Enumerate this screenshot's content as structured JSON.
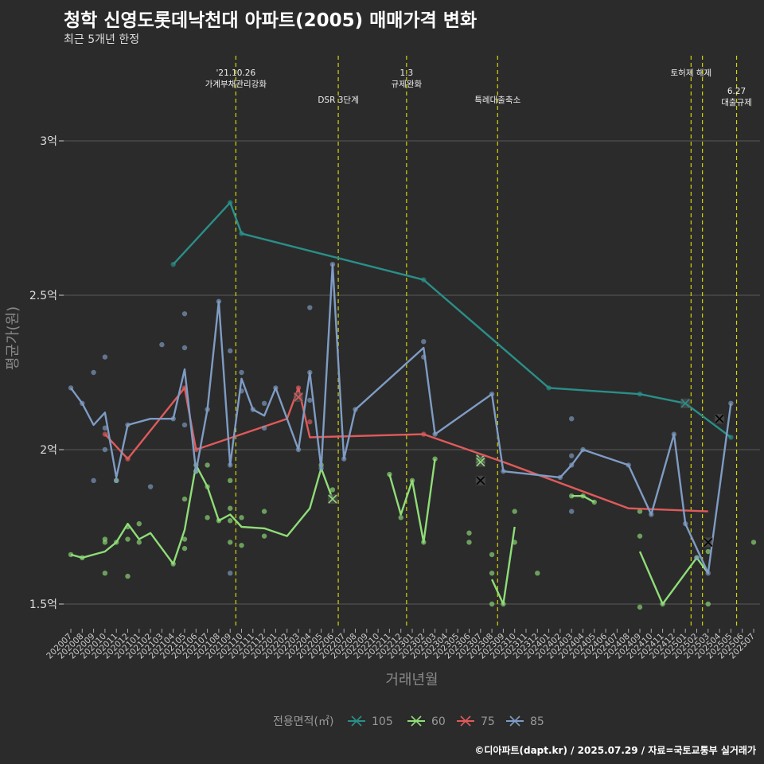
{
  "header": {
    "title": "청학 신영도롯데낙천대 아파트(2005) 매매가격 변화",
    "subtitle": "최근 5개년 한정"
  },
  "caption": "©디아파트(dapt.kr) / 2025.07.29 / 자료=국토교통부 실거래가",
  "colors": {
    "background": "#2b2b2b",
    "grid": "#5a5a5a",
    "vline": "#d4d40a"
  },
  "chart_data": {
    "type": "line",
    "xlabel": "거래년월",
    "ylabel": "평균가(원)",
    "yticks": [
      {
        "v": 1.5,
        "label": "1.5억"
      },
      {
        "v": 2.0,
        "label": "2억"
      },
      {
        "v": 2.5,
        "label": "2.5억"
      },
      {
        "v": 3.0,
        "label": "3억"
      }
    ],
    "ylim": [
      1.42,
      3.25
    ],
    "categories": [
      "202007",
      "202008",
      "202009",
      "202010",
      "202011",
      "202012",
      "202101",
      "202102",
      "202103",
      "202104",
      "202105",
      "202106",
      "202107",
      "202108",
      "202109",
      "202110",
      "202111",
      "202112",
      "202201",
      "202202",
      "202203",
      "202204",
      "202205",
      "202206",
      "202207",
      "202208",
      "202209",
      "202210",
      "202211",
      "202212",
      "202301",
      "202302",
      "202303",
      "202304",
      "202305",
      "202306",
      "202307",
      "202308",
      "202309",
      "202310",
      "202311",
      "202312",
      "202401",
      "202402",
      "202403",
      "202404",
      "202405",
      "202406",
      "202407",
      "202408",
      "202409",
      "202410",
      "202411",
      "202412",
      "202501",
      "202502",
      "202503",
      "202504",
      "202505",
      "202506",
      "202507"
    ],
    "annotations": [
      {
        "idx": 14.5,
        "lines": [
          "'21.10.26",
          "가계부채관리강화"
        ],
        "level": 0
      },
      {
        "idx": 23.5,
        "lines": [
          "DSR 3단계"
        ],
        "level": 1
      },
      {
        "idx": 29.5,
        "lines": [
          "1.3",
          "규제완화"
        ],
        "level": 0
      },
      {
        "idx": 37.5,
        "lines": [
          "특례대출축소"
        ],
        "level": 1
      },
      {
        "idx": 54.5,
        "lines": [
          "토허제 해제"
        ],
        "level": 0
      },
      {
        "idx": 55.5,
        "lines": [],
        "level": 0
      },
      {
        "idx": 58.5,
        "lines": [
          "6.27",
          "대출규제"
        ],
        "level": 2
      }
    ],
    "legend_title": "전용면적(㎡)",
    "series": [
      {
        "name": "105",
        "color": "#2a8f88",
        "line": [
          [
            9,
            2.6
          ],
          [
            14,
            2.8
          ],
          [
            15,
            2.7
          ],
          [
            31,
            2.55
          ],
          [
            42,
            2.2
          ],
          [
            50,
            2.18
          ],
          [
            54,
            2.15
          ],
          [
            58,
            2.04
          ]
        ],
        "points": [
          [
            9,
            2.6
          ],
          [
            14,
            2.8
          ],
          [
            15,
            2.7
          ],
          [
            31,
            2.55
          ],
          [
            42,
            2.2
          ],
          [
            50,
            2.18
          ],
          [
            58,
            2.04
          ]
        ],
        "marks": [
          [
            54,
            2.15
          ]
        ]
      },
      {
        "name": "60",
        "color": "#8fdd78",
        "line": [
          [
            0,
            1.66
          ],
          [
            1,
            1.65
          ],
          [
            3,
            1.67
          ],
          [
            4,
            1.7
          ],
          [
            5,
            1.76
          ],
          [
            6,
            1.71
          ],
          [
            7,
            1.73
          ],
          [
            9,
            1.63
          ],
          [
            10,
            1.74
          ],
          [
            11,
            1.95
          ],
          [
            12,
            1.88
          ],
          [
            13,
            1.77
          ],
          [
            14,
            1.79
          ],
          [
            15,
            1.75
          ],
          [
            17,
            1.745
          ],
          [
            19,
            1.72
          ],
          [
            21,
            1.81
          ],
          [
            22,
            1.94
          ],
          [
            23,
            1.84
          ]
        ],
        "line2": [
          [
            28,
            1.92
          ],
          [
            29,
            1.79
          ],
          [
            30,
            1.9
          ],
          [
            31,
            1.7
          ],
          [
            32,
            1.97
          ]
        ],
        "line3": [
          [
            37,
            1.58
          ],
          [
            38,
            1.5
          ],
          [
            39,
            1.75
          ]
        ],
        "line4": [
          [
            44,
            1.85
          ],
          [
            45,
            1.85
          ],
          [
            46,
            1.83
          ]
        ],
        "line5": [
          [
            50,
            1.67
          ],
          [
            52,
            1.5
          ],
          [
            55,
            1.65
          ],
          [
            56,
            1.6
          ]
        ],
        "points": [
          [
            0,
            1.66
          ],
          [
            1,
            1.65
          ],
          [
            3,
            1.6
          ],
          [
            3,
            1.71
          ],
          [
            3,
            1.7
          ],
          [
            4,
            1.9
          ],
          [
            4,
            1.7
          ],
          [
            5,
            1.59
          ],
          [
            5,
            1.75
          ],
          [
            5,
            1.71
          ],
          [
            6,
            1.76
          ],
          [
            6,
            1.7
          ],
          [
            9,
            1.63
          ],
          [
            10,
            1.84
          ],
          [
            10,
            1.71
          ],
          [
            10,
            1.68
          ],
          [
            11,
            1.95
          ],
          [
            11,
            1.93
          ],
          [
            12,
            1.95
          ],
          [
            12,
            1.88
          ],
          [
            12,
            1.78
          ],
          [
            13,
            1.77
          ],
          [
            14,
            1.9
          ],
          [
            14,
            1.81
          ],
          [
            14,
            1.77
          ],
          [
            14,
            1.7
          ],
          [
            15,
            1.78
          ],
          [
            15,
            1.69
          ],
          [
            17,
            1.8
          ],
          [
            17,
            1.72
          ],
          [
            22,
            1.95
          ],
          [
            23,
            1.87
          ],
          [
            28,
            1.92
          ],
          [
            29,
            1.78
          ],
          [
            30,
            1.9
          ],
          [
            31,
            1.7
          ],
          [
            32,
            1.97
          ],
          [
            35,
            1.73
          ],
          [
            35,
            1.7
          ],
          [
            37,
            1.66
          ],
          [
            37,
            1.6
          ],
          [
            37,
            1.5
          ],
          [
            38,
            1.5
          ],
          [
            39,
            1.8
          ],
          [
            39,
            1.7
          ],
          [
            41,
            1.6
          ],
          [
            44,
            1.85
          ],
          [
            45,
            1.85
          ],
          [
            46,
            1.83
          ],
          [
            50,
            1.8
          ],
          [
            50,
            1.72
          ],
          [
            50,
            1.49
          ],
          [
            52,
            1.5
          ],
          [
            55,
            1.65
          ],
          [
            56,
            1.67
          ],
          [
            56,
            1.5
          ],
          [
            60,
            1.7
          ]
        ],
        "marks": [
          [
            23,
            1.84
          ],
          [
            36,
            1.97
          ],
          [
            36,
            1.96
          ]
        ]
      },
      {
        "name": "75",
        "color": "#e05a5a",
        "line": [
          [
            3,
            2.05
          ],
          [
            5,
            1.97
          ],
          [
            10,
            2.2
          ],
          [
            11,
            2.0
          ],
          [
            19,
            2.1
          ],
          [
            20,
            2.2
          ],
          [
            21,
            2.04
          ],
          [
            31,
            2.05
          ],
          [
            38,
            1.96
          ],
          [
            49,
            1.81
          ],
          [
            56,
            1.8
          ]
        ],
        "points": [
          [
            3,
            2.05
          ],
          [
            5,
            1.97
          ],
          [
            10,
            2.2
          ],
          [
            11,
            2.0
          ],
          [
            20,
            2.2
          ],
          [
            21,
            2.09
          ],
          [
            31,
            2.05
          ]
        ],
        "marks": [
          [
            20,
            2.17
          ]
        ]
      },
      {
        "name": "85",
        "color": "#7f9cc4",
        "line": [
          [
            0,
            2.2
          ],
          [
            1,
            2.15
          ],
          [
            2,
            2.08
          ],
          [
            3,
            2.12
          ],
          [
            4,
            1.91
          ],
          [
            5,
            2.08
          ],
          [
            7,
            2.1
          ],
          [
            9,
            2.1
          ],
          [
            10,
            2.26
          ],
          [
            11,
            1.93
          ],
          [
            12,
            2.13
          ],
          [
            13,
            2.48
          ],
          [
            14,
            1.95
          ],
          [
            15,
            2.23
          ],
          [
            16,
            2.13
          ],
          [
            17,
            2.11
          ],
          [
            18,
            2.2
          ],
          [
            20,
            2.0
          ],
          [
            21,
            2.25
          ],
          [
            22,
            1.94
          ],
          [
            23,
            2.6
          ],
          [
            24,
            1.97
          ],
          [
            25,
            2.13
          ],
          [
            31,
            2.33
          ],
          [
            32,
            2.05
          ],
          [
            37,
            2.18
          ],
          [
            38,
            1.93
          ],
          [
            43,
            1.91
          ],
          [
            44,
            1.95
          ],
          [
            45,
            2.0
          ],
          [
            49,
            1.95
          ],
          [
            51,
            1.79
          ],
          [
            53,
            2.05
          ],
          [
            54,
            1.76
          ],
          [
            56,
            1.6
          ],
          [
            58,
            2.15
          ]
        ],
        "points": [
          [
            0,
            2.2
          ],
          [
            1,
            2.15
          ],
          [
            2,
            2.25
          ],
          [
            2,
            1.9
          ],
          [
            3,
            2.3
          ],
          [
            3,
            2.07
          ],
          [
            3,
            2.0
          ],
          [
            4,
            1.9
          ],
          [
            5,
            2.08
          ],
          [
            7,
            1.88
          ],
          [
            8,
            2.34
          ],
          [
            9,
            2.1
          ],
          [
            10,
            2.44
          ],
          [
            10,
            2.33
          ],
          [
            10,
            2.08
          ],
          [
            11,
            1.93
          ],
          [
            12,
            2.13
          ],
          [
            13,
            2.48
          ],
          [
            14,
            2.32
          ],
          [
            14,
            1.95
          ],
          [
            14,
            1.6
          ],
          [
            15,
            2.25
          ],
          [
            15,
            2.19
          ],
          [
            16,
            2.13
          ],
          [
            17,
            2.15
          ],
          [
            17,
            2.07
          ],
          [
            18,
            2.2
          ],
          [
            20,
            2.0
          ],
          [
            21,
            2.46
          ],
          [
            21,
            2.25
          ],
          [
            21,
            2.16
          ],
          [
            22,
            1.94
          ],
          [
            23,
            2.6
          ],
          [
            24,
            1.97
          ],
          [
            25,
            2.13
          ],
          [
            31,
            2.35
          ],
          [
            31,
            2.3
          ],
          [
            32,
            2.05
          ],
          [
            37,
            2.18
          ],
          [
            38,
            1.93
          ],
          [
            43,
            1.91
          ],
          [
            44,
            2.1
          ],
          [
            44,
            1.98
          ],
          [
            44,
            1.95
          ],
          [
            44,
            1.8
          ],
          [
            45,
            2.0
          ],
          [
            49,
            1.95
          ],
          [
            51,
            1.79
          ],
          [
            53,
            2.05
          ],
          [
            54,
            1.76
          ],
          [
            55,
            1.65
          ],
          [
            56,
            1.6
          ],
          [
            58,
            2.15
          ]
        ],
        "marks": [
          [
            36,
            1.9
          ],
          [
            57,
            2.1
          ],
          [
            56,
            1.7
          ]
        ]
      }
    ]
  }
}
